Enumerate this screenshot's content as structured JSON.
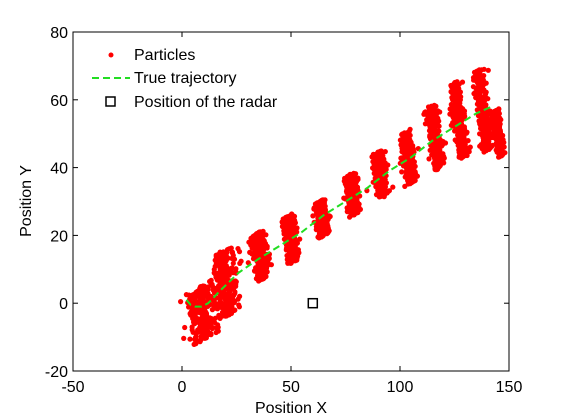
{
  "chart_data": {
    "type": "scatter",
    "xlabel": "Position X",
    "ylabel": "Position Y",
    "xlim": [
      -50,
      150
    ],
    "ylim": [
      -20,
      80
    ],
    "xticks": [
      -50,
      0,
      50,
      100,
      150
    ],
    "yticks": [
      -20,
      0,
      20,
      40,
      60,
      80
    ],
    "grid": false,
    "legend": {
      "position": "top-left",
      "entries": [
        "Particles",
        "True trajectory",
        "Position of the radar"
      ]
    },
    "series": [
      {
        "name": "Particles",
        "kind": "scatter-clouds",
        "color": "#ff0000",
        "clouds": [
          {
            "cx": 9,
            "cy": -3,
            "spread_along": 8,
            "spread_across": 9
          },
          {
            "cx": 20,
            "cy": 6,
            "spread_along": 6,
            "spread_across": 11
          },
          {
            "cx": 36,
            "cy": 14,
            "spread_along": 4,
            "spread_across": 8
          },
          {
            "cx": 50,
            "cy": 19,
            "spread_along": 3,
            "spread_across": 8
          },
          {
            "cx": 64,
            "cy": 25,
            "spread_along": 3,
            "spread_across": 6
          },
          {
            "cx": 78,
            "cy": 32,
            "spread_along": 3,
            "spread_across": 7
          },
          {
            "cx": 91,
            "cy": 38,
            "spread_along": 3,
            "spread_across": 8
          },
          {
            "cx": 104,
            "cy": 43,
            "spread_along": 3,
            "spread_across": 9
          },
          {
            "cx": 116,
            "cy": 49,
            "spread_along": 3,
            "spread_across": 11
          },
          {
            "cx": 127,
            "cy": 54,
            "spread_along": 3,
            "spread_across": 13
          },
          {
            "cx": 138,
            "cy": 57,
            "spread_along": 3,
            "spread_across": 14
          },
          {
            "cx": 145,
            "cy": 50,
            "spread_along": 2,
            "spread_across": 8
          }
        ]
      },
      {
        "name": "True trajectory",
        "kind": "line",
        "color": "#22dd22",
        "dashed": true,
        "x": [
          2,
          4,
          6,
          9,
          12,
          18,
          26,
          35,
          45,
          55,
          65,
          75,
          85,
          95,
          105,
          115,
          125,
          135,
          142
        ],
        "y": [
          1,
          -0.5,
          -1,
          -1,
          0,
          4,
          9,
          13,
          17,
          21,
          26,
          30,
          34,
          39,
          43,
          48,
          52,
          56,
          58
        ]
      },
      {
        "name": "Position of the radar",
        "kind": "marker",
        "marker": "square",
        "color": "#000000",
        "x": [
          60
        ],
        "y": [
          0
        ]
      }
    ]
  }
}
